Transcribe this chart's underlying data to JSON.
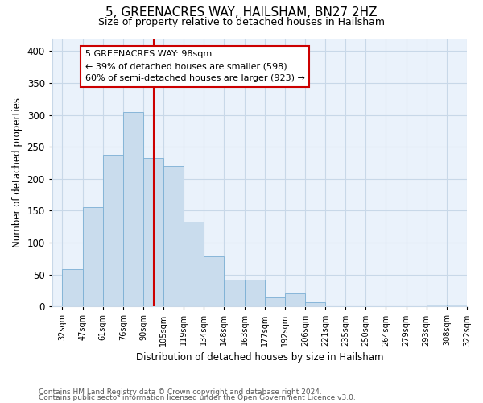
{
  "title": "5, GREENACRES WAY, HAILSHAM, BN27 2HZ",
  "subtitle": "Size of property relative to detached houses in Hailsham",
  "xlabel": "Distribution of detached houses by size in Hailsham",
  "ylabel": "Number of detached properties",
  "bar_labels": [
    "32sqm",
    "47sqm",
    "61sqm",
    "76sqm",
    "90sqm",
    "105sqm",
    "119sqm",
    "134sqm",
    "148sqm",
    "163sqm",
    "177sqm",
    "192sqm",
    "206sqm",
    "221sqm",
    "235sqm",
    "250sqm",
    "264sqm",
    "279sqm",
    "293sqm",
    "308sqm",
    "322sqm"
  ],
  "bar_values": [
    58,
    155,
    238,
    305,
    233,
    220,
    133,
    78,
    42,
    42,
    14,
    20,
    7,
    0,
    0,
    0,
    0,
    0,
    3,
    3
  ],
  "bar_color": "#c9dced",
  "bar_edge_color": "#7bafd4",
  "vline_x": 4.533,
  "vline_color": "#cc0000",
  "ylim": [
    0,
    420
  ],
  "yticks": [
    0,
    50,
    100,
    150,
    200,
    250,
    300,
    350,
    400
  ],
  "annotation_lines": [
    "5 GREENACRES WAY: 98sqm",
    "← 39% of detached houses are smaller (598)",
    "60% of semi-detached houses are larger (923) →"
  ],
  "footer_line1": "Contains HM Land Registry data © Crown copyright and database right 2024.",
  "footer_line2": "Contains public sector information licensed under the Open Government Licence v3.0.",
  "background_color": "#ffffff",
  "grid_color": "#c8d8e8",
  "figsize": [
    6.0,
    5.0
  ],
  "dpi": 100
}
